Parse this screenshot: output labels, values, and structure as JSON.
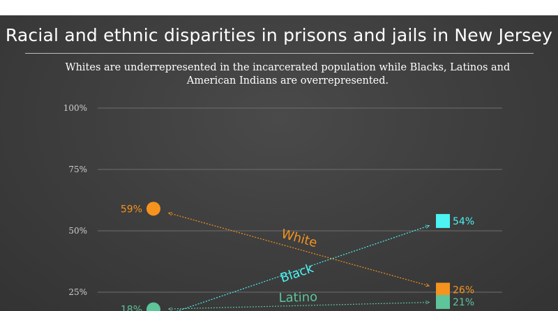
{
  "header": {
    "title": "Racial and ethnic disparities in prisons and jails in New Jersey",
    "subtitle": "Whites are underrepresented in the incarcerated population while Blacks, Latinos and American Indians are overrepresented."
  },
  "chart_data": {
    "type": "slope",
    "title": "Racial and ethnic disparities in prisons and jails in New Jersey",
    "subtitle": "Whites are underrepresented in the incarcerated population while Blacks, Latinos and American Indians are overrepresented.",
    "ylim": [
      0,
      100
    ],
    "y_ticks": [
      25,
      50,
      75,
      100
    ],
    "y_tick_labels": [
      "25%",
      "50%",
      "75%",
      "100%"
    ],
    "grid": true,
    "series": [
      {
        "name": "White",
        "color": "#f6931e",
        "start": 59,
        "end": 26,
        "start_label": "59%",
        "end_label": "26%"
      },
      {
        "name": "Black",
        "color": "#4df2f2",
        "start": 14,
        "end": 54,
        "start_label": "",
        "end_label": "54%"
      },
      {
        "name": "Latino",
        "color": "#5ec49a",
        "start": 18,
        "end": 21,
        "start_label": "18%",
        "end_label": "21%"
      }
    ]
  }
}
